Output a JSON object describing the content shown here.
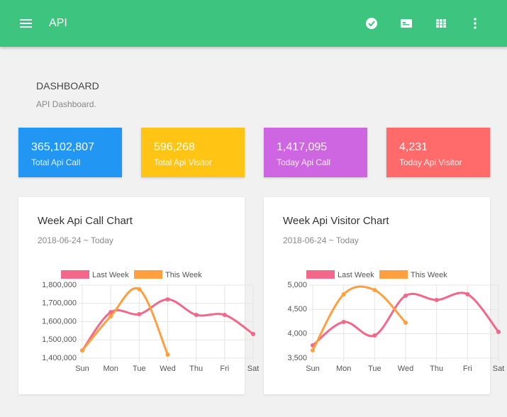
{
  "header": {
    "title": "API"
  },
  "dashboard": {
    "title": "DASHBOARD",
    "subtitle": "API Dashboard."
  },
  "stats": [
    {
      "value": "365,102,807",
      "label": "Total Api Call",
      "color": "#2196f3"
    },
    {
      "value": "596,268",
      "label": "Total Api Visitor",
      "color": "#ffc414"
    },
    {
      "value": "1,417,095",
      "label": "Today Api Call",
      "color": "#cd66e0"
    },
    {
      "value": "4,231",
      "label": "Today Api Visitor",
      "color": "#ff6b6b"
    }
  ],
  "chart_data": [
    {
      "type": "line",
      "title": "Week Api Call Chart",
      "subtitle": "2018-06-24 ~ Today",
      "categories": [
        "Sun",
        "Mon",
        "Tue",
        "Wed",
        "Thu",
        "Fri",
        "Sat"
      ],
      "series": [
        {
          "name": "Last Week",
          "color": "#f2678a",
          "values": [
            1442000,
            1652000,
            1641000,
            1722000,
            1637000,
            1637000,
            1532000
          ]
        },
        {
          "name": "This Week",
          "color": "#ff9f40",
          "values": [
            1442000,
            1629000,
            1777000,
            1419000,
            null,
            null,
            null
          ]
        }
      ],
      "ylim": [
        1400000,
        1800000
      ],
      "yticks": [
        {
          "value": 1400000,
          "label": "1,400,000"
        },
        {
          "value": 1500000,
          "label": "1,500,000"
        },
        {
          "value": 1600000,
          "label": "1,600,000"
        },
        {
          "value": 1700000,
          "label": "1,700,000"
        },
        {
          "value": 1800000,
          "label": "1,800,000"
        }
      ],
      "grid": true,
      "legend": "top"
    },
    {
      "type": "line",
      "title": "Week Api Visitor Chart",
      "subtitle": "2018-06-24 ~ Today",
      "categories": [
        "Sun",
        "Mon",
        "Tue",
        "Wed",
        "Thu",
        "Fri",
        "Sat"
      ],
      "series": [
        {
          "name": "Last Week",
          "color": "#f2678a",
          "values": [
            3762,
            4243,
            3966,
            4782,
            4695,
            4811,
            4039
          ]
        },
        {
          "name": "This Week",
          "color": "#ff9f40",
          "values": [
            3660,
            4811,
            4898,
            4228,
            null,
            null,
            null
          ]
        }
      ],
      "ylim": [
        3500,
        5000
      ],
      "yticks": [
        {
          "value": 3500,
          "label": "3,500"
        },
        {
          "value": 4000,
          "label": "4,000"
        },
        {
          "value": 4500,
          "label": "4,500"
        },
        {
          "value": 5000,
          "label": "5,000"
        }
      ],
      "grid": true,
      "legend": "top"
    }
  ]
}
